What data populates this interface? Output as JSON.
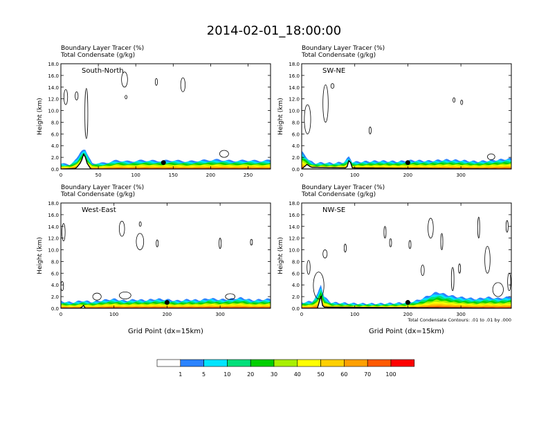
{
  "title": "2014-02-01_18:00:00",
  "colors": {
    "levels": [
      "#ffffff",
      "#2b83ff",
      "#00e5ff",
      "#00e07a",
      "#00d000",
      "#a8f000",
      "#ffff00",
      "#ffd000",
      "#ffa000",
      "#ff5a00",
      "#ff0000"
    ],
    "contour": "#000000",
    "topography": "#000000",
    "marker": "#000000"
  },
  "colorbar": {
    "labels": [
      "1",
      "5",
      "10",
      "20",
      "30",
      "40",
      "50",
      "60",
      "70",
      "100"
    ]
  },
  "footnote": "Total Condensate Contours: .01 to .01 by .000",
  "chart_data": [
    {
      "type": "contour",
      "panel": "top-left",
      "title_line1": "Boundary Layer Tracer   (%)",
      "title_line2": "Total Condensate   (g/kg)",
      "annotation": "South-North",
      "ylabel": "Height (km)",
      "xlabel": "",
      "xlim": [
        0,
        280
      ],
      "ylim": [
        0,
        18
      ],
      "xticks": [
        0,
        50,
        100,
        150,
        200,
        250
      ],
      "yticks": [
        "0.0",
        "2.0",
        "4.0",
        "6.0",
        "8.0",
        "10.0",
        "12.0",
        "14.0",
        "16.0",
        "18.0"
      ],
      "tracer_top_km": [
        [
          0,
          0.9
        ],
        [
          12,
          0.8
        ],
        [
          22,
          1.8
        ],
        [
          27,
          3.2
        ],
        [
          32,
          3.6
        ],
        [
          36,
          2.2
        ],
        [
          42,
          1.0
        ],
        [
          55,
          1.0
        ],
        [
          65,
          1.2
        ],
        [
          75,
          1.5
        ],
        [
          90,
          1.3
        ],
        [
          110,
          1.5
        ],
        [
          130,
          1.4
        ],
        [
          150,
          1.5
        ],
        [
          170,
          1.3
        ],
        [
          190,
          1.5
        ],
        [
          210,
          1.6
        ],
        [
          230,
          1.4
        ],
        [
          250,
          1.5
        ],
        [
          265,
          1.4
        ],
        [
          280,
          1.5
        ]
      ],
      "terrain_km": [
        [
          0,
          0
        ],
        [
          20,
          0.1
        ],
        [
          27,
          1.2
        ],
        [
          31,
          2.8
        ],
        [
          35,
          1.0
        ],
        [
          40,
          0
        ],
        [
          280,
          0
        ]
      ],
      "marker": [
        137,
        1.1
      ],
      "cloud_contours": [
        {
          "x": 4,
          "y": 11.0,
          "w": 5,
          "h": 2.6
        },
        {
          "x": 19,
          "y": 11.8,
          "w": 4,
          "h": 1.4
        },
        {
          "x": 32,
          "y": 5.2,
          "w": 4,
          "h": 8.6
        },
        {
          "x": 81,
          "y": 14.0,
          "w": 8,
          "h": 2.6
        },
        {
          "x": 86,
          "y": 12.0,
          "w": 2,
          "h": 0.6
        },
        {
          "x": 126,
          "y": 14.3,
          "w": 3,
          "h": 1.2
        },
        {
          "x": 160,
          "y": 13.2,
          "w": 6,
          "h": 2.4
        },
        {
          "x": 212,
          "y": 2.0,
          "w": 12,
          "h": 1.2
        }
      ]
    },
    {
      "type": "contour",
      "panel": "top-right",
      "title_line1": "Boundary Layer Tracer   (%)",
      "title_line2": "Total Condensate   (g/kg)",
      "annotation": "SW-NE",
      "ylabel": "Height (km)",
      "xlabel": "",
      "xlim": [
        0,
        395
      ],
      "ylim": [
        0,
        18
      ],
      "xticks": [
        0,
        100,
        200,
        300
      ],
      "yticks": [
        "0.0",
        "2.0",
        "4.0",
        "6.0",
        "8.0",
        "10.0",
        "12.0",
        "14.0",
        "16.0",
        "18.0"
      ],
      "tracer_top_km": [
        [
          0,
          3.0
        ],
        [
          8,
          2.2
        ],
        [
          15,
          1.4
        ],
        [
          25,
          1.0
        ],
        [
          40,
          1.1
        ],
        [
          60,
          1.0
        ],
        [
          80,
          1.2
        ],
        [
          90,
          2.2
        ],
        [
          95,
          1.2
        ],
        [
          120,
          1.3
        ],
        [
          150,
          1.4
        ],
        [
          180,
          1.3
        ],
        [
          210,
          1.5
        ],
        [
          240,
          1.4
        ],
        [
          270,
          1.6
        ],
        [
          300,
          1.5
        ],
        [
          330,
          1.3
        ],
        [
          360,
          1.5
        ],
        [
          395,
          1.8
        ]
      ],
      "terrain_km": [
        [
          0,
          0
        ],
        [
          10,
          0.8
        ],
        [
          18,
          0.3
        ],
        [
          85,
          0.2
        ],
        [
          90,
          1.8
        ],
        [
          95,
          0.2
        ],
        [
          395,
          0
        ]
      ],
      "marker": [
        200,
        1.1
      ],
      "cloud_contours": [
        {
          "x": 5,
          "y": 6.0,
          "w": 12,
          "h": 5.0
        },
        {
          "x": 40,
          "y": 8.0,
          "w": 10,
          "h": 6.4
        },
        {
          "x": 55,
          "y": 13.8,
          "w": 6,
          "h": 0.8
        },
        {
          "x": 128,
          "y": 6.0,
          "w": 2,
          "h": 1.2
        },
        {
          "x": 285,
          "y": 11.4,
          "w": 4,
          "h": 0.8
        },
        {
          "x": 300,
          "y": 11.0,
          "w": 3,
          "h": 0.8
        },
        {
          "x": 350,
          "y": 1.6,
          "w": 14,
          "h": 1.0
        }
      ]
    },
    {
      "type": "contour",
      "panel": "bottom-left",
      "title_line1": "Boundary Layer Tracer   (%)",
      "title_line2": "Total Condensate   (g/kg)",
      "annotation": "West-East",
      "ylabel": "Height (km)",
      "xlabel": "Grid Point (dx=15km)",
      "xlim": [
        0,
        395
      ],
      "ylim": [
        0,
        18
      ],
      "xticks": [
        0,
        100,
        200,
        300
      ],
      "yticks": [
        "0.0",
        "2.0",
        "4.0",
        "6.0",
        "8.0",
        "10.0",
        "12.0",
        "14.0",
        "16.0",
        "18.0"
      ],
      "tracer_top_km": [
        [
          0,
          1.2
        ],
        [
          20,
          1.0
        ],
        [
          40,
          1.3
        ],
        [
          60,
          1.1
        ],
        [
          80,
          1.4
        ],
        [
          100,
          1.6
        ],
        [
          120,
          1.3
        ],
        [
          140,
          1.5
        ],
        [
          160,
          1.4
        ],
        [
          180,
          1.6
        ],
        [
          200,
          1.5
        ],
        [
          220,
          1.3
        ],
        [
          240,
          1.5
        ],
        [
          260,
          1.4
        ],
        [
          280,
          1.7
        ],
        [
          300,
          1.5
        ],
        [
          320,
          1.6
        ],
        [
          340,
          1.8
        ],
        [
          360,
          1.4
        ],
        [
          395,
          1.6
        ]
      ],
      "terrain_km": [
        [
          0,
          0
        ],
        [
          38,
          0
        ],
        [
          42,
          0.6
        ],
        [
          46,
          0
        ],
        [
          395,
          0
        ]
      ],
      "marker": [
        200,
        1.0
      ],
      "cloud_contours": [
        {
          "x": 2,
          "y": 11.5,
          "w": 6,
          "h": 3.0
        },
        {
          "x": 0,
          "y": 3.0,
          "w": 5,
          "h": 1.6
        },
        {
          "x": 110,
          "y": 12.3,
          "w": 10,
          "h": 2.6
        },
        {
          "x": 148,
          "y": 14.0,
          "w": 3,
          "h": 0.8
        },
        {
          "x": 142,
          "y": 10.0,
          "w": 14,
          "h": 2.8
        },
        {
          "x": 180,
          "y": 10.5,
          "w": 3,
          "h": 1.2
        },
        {
          "x": 298,
          "y": 10.2,
          "w": 4,
          "h": 1.8
        },
        {
          "x": 358,
          "y": 10.8,
          "w": 2,
          "h": 1.0
        },
        {
          "x": 60,
          "y": 1.4,
          "w": 16,
          "h": 1.2
        },
        {
          "x": 110,
          "y": 1.6,
          "w": 22,
          "h": 1.2
        },
        {
          "x": 310,
          "y": 1.5,
          "w": 18,
          "h": 1.0
        }
      ]
    },
    {
      "type": "contour",
      "panel": "bottom-right",
      "title_line1": "Boundary Layer Tracer   (%)",
      "title_line2": "Total Condensate   (g/kg)",
      "annotation": "NW-SE",
      "ylabel": "Height (km)",
      "xlabel": "Grid Point (dx=15km)",
      "xlim": [
        0,
        395
      ],
      "ylim": [
        0,
        18
      ],
      "xticks": [
        0,
        100,
        200,
        300
      ],
      "yticks": [
        "0.0",
        "2.0",
        "4.0",
        "6.0",
        "8.0",
        "10.0",
        "12.0",
        "14.0",
        "16.0",
        "18.0"
      ],
      "tracer_top_km": [
        [
          0,
          1.0
        ],
        [
          20,
          1.2
        ],
        [
          30,
          2.4
        ],
        [
          36,
          4.2
        ],
        [
          42,
          2.0
        ],
        [
          55,
          1.0
        ],
        [
          80,
          0.9
        ],
        [
          110,
          0.8
        ],
        [
          150,
          0.8
        ],
        [
          180,
          0.9
        ],
        [
          200,
          1.0
        ],
        [
          220,
          1.4
        ],
        [
          240,
          2.2
        ],
        [
          255,
          2.8
        ],
        [
          270,
          2.4
        ],
        [
          290,
          2.0
        ],
        [
          310,
          1.8
        ],
        [
          330,
          1.6
        ],
        [
          350,
          1.9
        ],
        [
          370,
          1.7
        ],
        [
          395,
          2.0
        ]
      ],
      "terrain_km": [
        [
          0,
          0
        ],
        [
          30,
          0
        ],
        [
          36,
          2.2
        ],
        [
          40,
          0.2
        ],
        [
          395,
          0
        ]
      ],
      "marker": [
        200,
        1.0
      ],
      "cloud_contours": [
        {
          "x": 22,
          "y": 1.6,
          "w": 20,
          "h": 4.6
        },
        {
          "x": 10,
          "y": 5.8,
          "w": 6,
          "h": 2.4
        },
        {
          "x": 40,
          "y": 8.6,
          "w": 8,
          "h": 1.4
        },
        {
          "x": 80,
          "y": 9.6,
          "w": 4,
          "h": 1.4
        },
        {
          "x": 155,
          "y": 12.0,
          "w": 4,
          "h": 2.0
        },
        {
          "x": 166,
          "y": 10.5,
          "w": 3,
          "h": 1.4
        },
        {
          "x": 202,
          "y": 10.2,
          "w": 4,
          "h": 1.4
        },
        {
          "x": 225,
          "y": 5.6,
          "w": 6,
          "h": 1.8
        },
        {
          "x": 238,
          "y": 12.0,
          "w": 10,
          "h": 3.4
        },
        {
          "x": 262,
          "y": 10.0,
          "w": 4,
          "h": 2.8
        },
        {
          "x": 282,
          "y": 3.0,
          "w": 5,
          "h": 4.0
        },
        {
          "x": 296,
          "y": 6.0,
          "w": 3,
          "h": 1.6
        },
        {
          "x": 332,
          "y": 12.0,
          "w": 3,
          "h": 3.6
        },
        {
          "x": 345,
          "y": 6.0,
          "w": 10,
          "h": 4.6
        },
        {
          "x": 360,
          "y": 2.0,
          "w": 20,
          "h": 2.4
        },
        {
          "x": 385,
          "y": 13.0,
          "w": 4,
          "h": 2.0
        },
        {
          "x": 388,
          "y": 3.0,
          "w": 6,
          "h": 3.0
        }
      ]
    }
  ]
}
